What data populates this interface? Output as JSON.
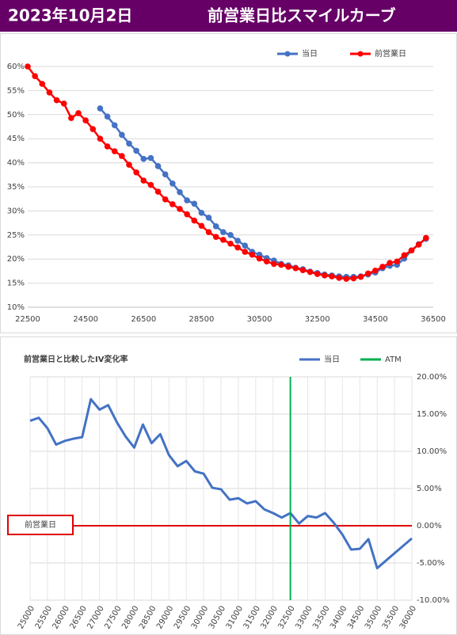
{
  "header": {
    "date": "2023年10月2日",
    "title": "前営業日比スマイルカーブ"
  },
  "chart_data": [
    {
      "type": "line",
      "markers": true,
      "x": [
        22500,
        22750,
        23000,
        23250,
        23500,
        23750,
        24000,
        24250,
        24500,
        24750,
        25000,
        25250,
        25500,
        25750,
        26000,
        26250,
        26500,
        26750,
        27000,
        27250,
        27500,
        27750,
        28000,
        28250,
        28500,
        28750,
        29000,
        29250,
        29500,
        29750,
        30000,
        30250,
        30500,
        30750,
        31000,
        31250,
        31500,
        31750,
        32000,
        32250,
        32500,
        32750,
        33000,
        33250,
        33500,
        33750,
        34000,
        34250,
        34500,
        34750,
        35000,
        35250,
        35500,
        35750,
        36000,
        36250
      ],
      "series": [
        {
          "name": "当日",
          "color": "#4472c4",
          "values": [
            null,
            null,
            null,
            null,
            null,
            null,
            null,
            null,
            null,
            null,
            51.3,
            49.6,
            47.8,
            45.8,
            44,
            42.5,
            40.8,
            41,
            39.3,
            37.6,
            35.7,
            33.9,
            32.2,
            31.5,
            29.6,
            28.6,
            26.8,
            25.6,
            25,
            23.8,
            22.8,
            21.5,
            20.9,
            20.2,
            19.7,
            19,
            18.7,
            18.2,
            17.9,
            17.4,
            17.1,
            16.8,
            16.6,
            16.4,
            16.3,
            16.3,
            16.4,
            16.8,
            17.2,
            18.1,
            18.6,
            18.8,
            20.1,
            21.8,
            23.1,
            24.2
          ]
        },
        {
          "name": "前営業日",
          "color": "#ff0000",
          "values": [
            60,
            58,
            56.4,
            54.6,
            53,
            52.3,
            49.3,
            50.3,
            48.8,
            47,
            45,
            43.4,
            42.4,
            41.4,
            39.6,
            38,
            36.3,
            35.4,
            34,
            32.4,
            31.4,
            30.4,
            29.3,
            28,
            26.9,
            25.6,
            24.6,
            24,
            23.2,
            22.4,
            21.5,
            20.9,
            20.1,
            19.5,
            19,
            18.8,
            18.4,
            18.1,
            17.7,
            17.3,
            16.9,
            16.6,
            16.4,
            16.1,
            15.9,
            16,
            16.3,
            17,
            17.6,
            18.4,
            19.2,
            19.5,
            20.8,
            21.8,
            23,
            24.4
          ]
        }
      ],
      "xlim": [
        22500,
        36500
      ],
      "xticks": [
        22500,
        24500,
        26500,
        28500,
        30500,
        32500,
        34500,
        36500
      ],
      "ylim": [
        10,
        60
      ],
      "yticks": [
        {
          "value": 10,
          "label": "10%"
        },
        {
          "value": 15,
          "label": "15%"
        },
        {
          "value": 20,
          "label": "20%"
        },
        {
          "value": 25,
          "label": "25%"
        },
        {
          "value": 30,
          "label": "30%"
        },
        {
          "value": 35,
          "label": "35%"
        },
        {
          "value": 40,
          "label": "40%"
        },
        {
          "value": 45,
          "label": "45%"
        },
        {
          "value": 50,
          "label": "50%"
        },
        {
          "value": 55,
          "label": "55%"
        },
        {
          "value": 60,
          "label": "60%"
        }
      ],
      "grid": true
    },
    {
      "type": "line",
      "title": "前営業日と比較したIV変化率",
      "markers": false,
      "x": [
        25000,
        25250,
        25500,
        25750,
        26000,
        26250,
        26500,
        26750,
        27000,
        27250,
        27500,
        27750,
        28000,
        28250,
        28500,
        28750,
        29000,
        29250,
        29500,
        29750,
        30000,
        30250,
        30500,
        30750,
        31000,
        31250,
        31500,
        31750,
        32000,
        32250,
        32500,
        32750,
        33000,
        33250,
        33500,
        33750,
        34000,
        34250,
        34500,
        34750,
        35000,
        35250,
        35500,
        35750,
        36000
      ],
      "series": [
        {
          "name": "当日",
          "color": "#4472c4",
          "values": [
            14.1,
            14.5,
            13.1,
            10.9,
            11.4,
            11.7,
            11.9,
            17,
            15.6,
            16.2,
            13.9,
            12,
            10.5,
            13.6,
            11.1,
            12.3,
            9.5,
            8,
            8.7,
            7.3,
            7,
            5.1,
            4.9,
            3.5,
            3.7,
            3,
            3.3,
            2.2,
            1.7,
            1.1,
            1.7,
            0.3,
            1.3,
            1.1,
            1.7,
            0.4,
            -1.2,
            -3.2,
            -3.1,
            -1.8,
            -5.7,
            -4.7,
            -3.7,
            -2.7,
            -1.7
          ]
        },
        {
          "name": "ATM",
          "color": "#00b050",
          "x_value": 32500
        }
      ],
      "reference_line": {
        "value": 0,
        "label": "前営業日",
        "color": "#e00000"
      },
      "xlim": [
        25000,
        36000
      ],
      "xticks": [
        25000,
        25500,
        26000,
        26500,
        27000,
        27500,
        28000,
        28500,
        29000,
        29500,
        30000,
        30500,
        31000,
        31500,
        32000,
        32500,
        33000,
        33500,
        34000,
        34500,
        35000,
        35500,
        36000
      ],
      "x_label_rotation": -60,
      "ylim": [
        -10,
        20
      ],
      "y_axis_position": "right",
      "yticks": [
        {
          "value": -10,
          "label": "-10.00%"
        },
        {
          "value": -5,
          "label": "-5.00%"
        },
        {
          "value": 0,
          "label": "0.00%"
        },
        {
          "value": 5,
          "label": "5.00%"
        },
        {
          "value": 10,
          "label": "10.00%"
        },
        {
          "value": 15,
          "label": "15.00%"
        },
        {
          "value": 20,
          "label": "20.00%"
        }
      ],
      "grid": true,
      "vertical_grid": true
    }
  ]
}
